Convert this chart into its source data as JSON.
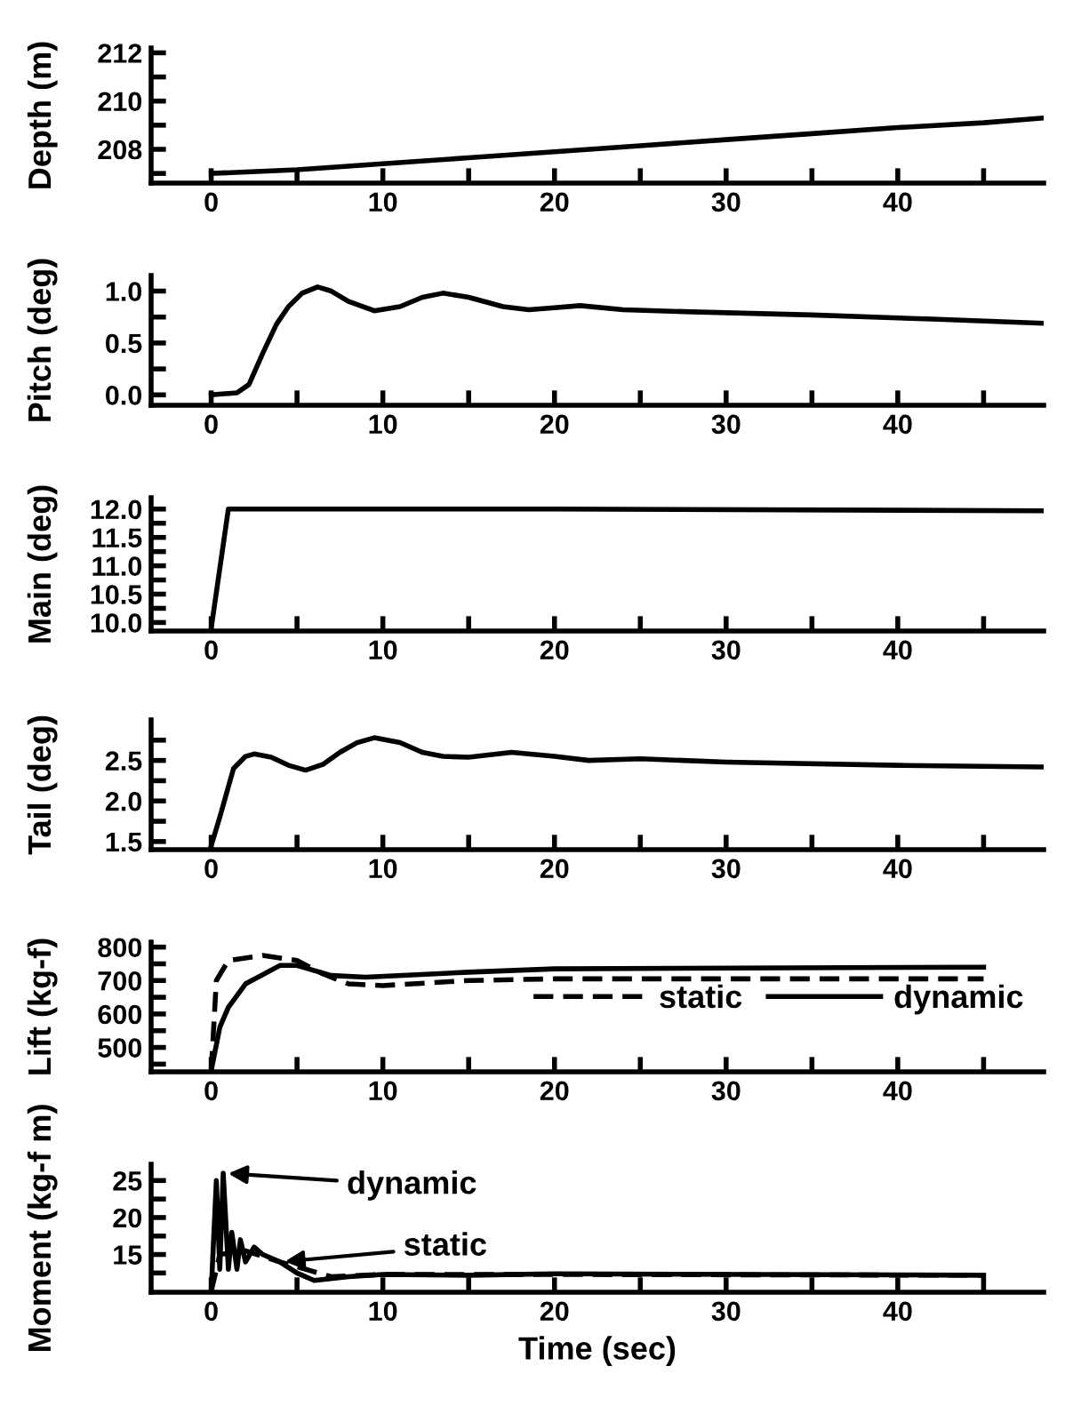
{
  "chart_data": [
    {
      "type": "line",
      "ylabel": "Depth (m)",
      "xlim": [
        -3.5,
        48.5
      ],
      "xticks": [
        0,
        {
          "value": 5,
          "label": null
        },
        10,
        {
          "value": 15,
          "label": null
        },
        20,
        {
          "value": 25,
          "label": null
        },
        30,
        {
          "value": 35,
          "label": null
        },
        40,
        {
          "value": 45,
          "label": null
        }
      ],
      "ylim": [
        206.6,
        212.2
      ],
      "yticks": [
        {
          "value": 207,
          "label": null
        },
        208,
        {
          "value": 209,
          "label": null
        },
        210,
        {
          "value": 211,
          "label": null
        },
        212
      ],
      "series": [
        {
          "color": "#000000",
          "line_style": "solid",
          "x": [
            0,
            5,
            10,
            15,
            20,
            25,
            30,
            35,
            40,
            45,
            48.5
          ],
          "values": [
            207.0,
            207.15,
            207.4,
            207.65,
            207.9,
            208.15,
            208.4,
            208.65,
            208.9,
            209.1,
            209.3
          ]
        }
      ]
    },
    {
      "type": "line",
      "ylabel": "Pitch (deg)",
      "xlim": [
        -3.5,
        48.5
      ],
      "xticks": [
        0,
        {
          "value": 5,
          "label": null
        },
        10,
        {
          "value": 15,
          "label": null
        },
        20,
        {
          "value": 25,
          "label": null
        },
        30,
        {
          "value": 35,
          "label": null
        },
        40,
        {
          "value": 45,
          "label": null
        }
      ],
      "ylim": [
        -0.1,
        1.15
      ],
      "yticks": [
        {
          "value": 0,
          "label": "0.0"
        },
        {
          "value": 0.25,
          "label": null
        },
        0.5,
        {
          "value": 0.75,
          "label": null
        },
        {
          "value": 1,
          "label": "1.0"
        }
      ],
      "series": [
        {
          "color": "#000000",
          "line_style": "solid",
          "x": [
            0,
            1.5,
            2.2,
            3,
            3.8,
            4.5,
            5.3,
            6.2,
            7,
            8,
            9.5,
            11,
            12.3,
            13.5,
            15,
            17,
            18.5,
            20,
            21.5,
            24,
            28,
            35,
            42,
            48.5
          ],
          "values": [
            0.0,
            0.02,
            0.1,
            0.4,
            0.68,
            0.85,
            0.98,
            1.04,
            1.0,
            0.9,
            0.81,
            0.85,
            0.94,
            0.98,
            0.94,
            0.85,
            0.82,
            0.84,
            0.86,
            0.82,
            0.8,
            0.77,
            0.73,
            0.69
          ]
        }
      ]
    },
    {
      "type": "line",
      "ylabel": "Main (deg)",
      "xlim": [
        -3.5,
        48.5
      ],
      "xticks": [
        0,
        {
          "value": 5,
          "label": null
        },
        10,
        {
          "value": 15,
          "label": null
        },
        20,
        {
          "value": 25,
          "label": null
        },
        30,
        {
          "value": 35,
          "label": null
        },
        40,
        {
          "value": 45,
          "label": null
        }
      ],
      "ylim": [
        9.85,
        12.2
      ],
      "yticks": [
        {
          "value": 10,
          "label": "10.0"
        },
        {
          "value": 10.25,
          "label": null
        },
        {
          "value": 10.5,
          "label": "10.5"
        },
        {
          "value": 10.75,
          "label": null
        },
        {
          "value": 11,
          "label": "11.0"
        },
        {
          "value": 11.25,
          "label": null
        },
        {
          "value": 11.5,
          "label": "11.5"
        },
        {
          "value": 11.75,
          "label": null
        },
        {
          "value": 12,
          "label": "12.0"
        }
      ],
      "series": [
        {
          "color": "#000000",
          "line_style": "solid",
          "x": [
            0,
            1,
            20,
            48.5
          ],
          "values": [
            9.9,
            12.0,
            12.0,
            11.97
          ]
        }
      ]
    },
    {
      "type": "line",
      "ylabel": "Tail (deg)",
      "xlim": [
        -3.5,
        48.5
      ],
      "xticks": [
        0,
        {
          "value": 5,
          "label": null
        },
        10,
        {
          "value": 15,
          "label": null
        },
        20,
        {
          "value": 25,
          "label": null
        },
        30,
        {
          "value": 35,
          "label": null
        },
        40,
        {
          "value": 45,
          "label": null
        }
      ],
      "ylim": [
        1.4,
        3.0
      ],
      "yticks": [
        1.5,
        {
          "value": 1.75,
          "label": null
        },
        {
          "value": 2,
          "label": "2.0"
        },
        {
          "value": 2.25,
          "label": null
        },
        2.5,
        {
          "value": 2.75,
          "label": null
        }
      ],
      "series": [
        {
          "color": "#000000",
          "line_style": "solid",
          "x": [
            0,
            0.5,
            1.3,
            2,
            2.5,
            3.5,
            4.5,
            5.5,
            6.5,
            7.5,
            8.5,
            9.5,
            11,
            12.3,
            13.5,
            15,
            17.5,
            20,
            22,
            25,
            30,
            40,
            48.5
          ],
          "values": [
            1.45,
            1.8,
            2.4,
            2.55,
            2.58,
            2.54,
            2.44,
            2.38,
            2.45,
            2.6,
            2.72,
            2.78,
            2.72,
            2.6,
            2.55,
            2.54,
            2.6,
            2.55,
            2.5,
            2.52,
            2.48,
            2.44,
            2.42
          ]
        }
      ]
    },
    {
      "type": "line",
      "ylabel": "Lift (kg-f)",
      "xlim": [
        -3.5,
        48.5
      ],
      "xticks": [
        0,
        {
          "value": 5,
          "label": null
        },
        10,
        {
          "value": 15,
          "label": null
        },
        20,
        {
          "value": 25,
          "label": null
        },
        30,
        {
          "value": 35,
          "label": null
        },
        40,
        {
          "value": 45,
          "label": null
        }
      ],
      "ylim": [
        427,
        815
      ],
      "yticks": [
        {
          "value": 450,
          "label": null
        },
        500,
        {
          "value": 550,
          "label": null
        },
        600,
        {
          "value": 650,
          "label": null
        },
        700,
        {
          "value": 750,
          "label": null
        },
        800
      ],
      "legend": "right",
      "series": [
        {
          "name": "static",
          "color": "#000000",
          "line_style": "dashed",
          "x": [
            0,
            0.3,
            1,
            3,
            5,
            6.5,
            8,
            10,
            15,
            20,
            45
          ],
          "values": [
            430,
            700,
            760,
            775,
            760,
            720,
            690,
            685,
            700,
            705,
            705
          ]
        },
        {
          "name": "dynamic",
          "color": "#000000",
          "line_style": "solid",
          "x": [
            0,
            0.5,
            1,
            2,
            4,
            5,
            7,
            9,
            15,
            20,
            45
          ],
          "values": [
            430,
            560,
            620,
            690,
            745,
            745,
            715,
            710,
            725,
            735,
            740
          ]
        }
      ]
    },
    {
      "type": "line",
      "ylabel": "Moment (kg-f m)",
      "xlabel": "Time (sec)",
      "xlim": [
        -3.5,
        48.5
      ],
      "xticks": [
        0,
        {
          "value": 5,
          "label": null
        },
        10,
        {
          "value": 15,
          "label": null
        },
        20,
        {
          "value": 25,
          "label": null
        },
        30,
        {
          "value": 35,
          "label": null
        },
        40,
        {
          "value": 45,
          "label": null
        }
      ],
      "ylim": [
        9.9,
        27.2
      ],
      "yticks": [
        {
          "value": 12.5,
          "label": null
        },
        15,
        {
          "value": 17.5,
          "label": null
        },
        20,
        {
          "value": 22.5,
          "label": null
        },
        25
      ],
      "annotations": [
        "dynamic",
        "static"
      ],
      "series": [
        {
          "color": "#000000",
          "line_style": "dashed",
          "x": [
            0,
            0.5,
            2,
            4,
            5.5,
            7,
            10,
            20,
            45
          ],
          "values": [
            10,
            15,
            15.5,
            14,
            13,
            12,
            12.3,
            12.3,
            12.2
          ]
        },
        {
          "color": "#000000",
          "line_style": "solid",
          "x": [
            0,
            0.3,
            0.5,
            0.7,
            1,
            1.2,
            1.5,
            1.7,
            2,
            2.5,
            3,
            4,
            5,
            6,
            8,
            10,
            15,
            20,
            45
          ],
          "values": [
            10,
            25,
            13,
            26,
            13,
            18,
            13,
            17,
            14,
            16,
            15,
            14,
            12.5,
            11.5,
            12,
            12.3,
            12.2,
            12.4,
            12.2
          ]
        }
      ]
    }
  ]
}
